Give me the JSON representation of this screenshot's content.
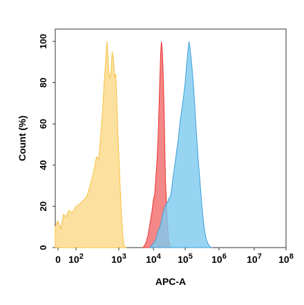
{
  "chart_data": {
    "type": "area",
    "xlabel": "APC-A",
    "ylabel": "Count  (%)",
    "xscale": "biexponential",
    "xlim": [
      -30,
      100000000
    ],
    "ylim": [
      0,
      106
    ],
    "x_ticks": [
      {
        "value": 0,
        "base": "0",
        "exp": ""
      },
      {
        "value": 100,
        "base": "10",
        "exp": "2"
      },
      {
        "value": 1000,
        "base": "10",
        "exp": "3"
      },
      {
        "value": 10000,
        "base": "10",
        "exp": "4"
      },
      {
        "value": 100000,
        "base": "10",
        "exp": "5"
      },
      {
        "value": 1000000,
        "base": "10",
        "exp": "6"
      },
      {
        "value": 10000000,
        "base": "10",
        "exp": "7"
      },
      {
        "value": 100000000,
        "base": "10",
        "exp": "8"
      }
    ],
    "y_ticks": [
      0,
      20,
      40,
      60,
      80,
      100
    ],
    "grid": false,
    "series": [
      {
        "color": "#f5c242",
        "fill": "#fbd98a",
        "points": [
          [
            -30,
            10
          ],
          [
            -15,
            12
          ],
          [
            0,
            13
          ],
          [
            15,
            9
          ],
          [
            30,
            16
          ],
          [
            45,
            15
          ],
          [
            60,
            18
          ],
          [
            80,
            17
          ],
          [
            100,
            20
          ],
          [
            120,
            21
          ],
          [
            150,
            23
          ],
          [
            180,
            25
          ],
          [
            220,
            31
          ],
          [
            260,
            37
          ],
          [
            300,
            44
          ],
          [
            340,
            43
          ],
          [
            380,
            55
          ],
          [
            420,
            67
          ],
          [
            460,
            82
          ],
          [
            500,
            92
          ],
          [
            530,
            100
          ],
          [
            560,
            92
          ],
          [
            600,
            82
          ],
          [
            650,
            84
          ],
          [
            700,
            95
          ],
          [
            750,
            91
          ],
          [
            800,
            83
          ],
          [
            850,
            84
          ],
          [
            900,
            70
          ],
          [
            950,
            56
          ],
          [
            1000,
            45
          ],
          [
            1100,
            28
          ],
          [
            1200,
            15
          ],
          [
            1300,
            6
          ],
          [
            1400,
            1
          ],
          [
            1600,
            0
          ]
        ]
      },
      {
        "color": "#e8322f",
        "fill": "#f26d6d",
        "points": [
          [
            5000,
            0
          ],
          [
            6000,
            2
          ],
          [
            7000,
            6
          ],
          [
            8000,
            12
          ],
          [
            9000,
            17
          ],
          [
            10000,
            23
          ],
          [
            11000,
            26
          ],
          [
            12000,
            34
          ],
          [
            13000,
            42
          ],
          [
            14000,
            52
          ],
          [
            15000,
            68
          ],
          [
            16000,
            82
          ],
          [
            17000,
            95
          ],
          [
            18000,
            100
          ],
          [
            19000,
            96
          ],
          [
            20000,
            88
          ],
          [
            21000,
            77
          ],
          [
            22000,
            62
          ],
          [
            23000,
            47
          ],
          [
            24000,
            33
          ],
          [
            26000,
            21
          ],
          [
            28000,
            10
          ],
          [
            30000,
            4
          ],
          [
            33000,
            1
          ],
          [
            36000,
            0
          ]
        ]
      },
      {
        "color": "#3a9fd8",
        "fill": "#7fcbef",
        "points": [
          [
            8000,
            0
          ],
          [
            10000,
            2
          ],
          [
            12000,
            4
          ],
          [
            14000,
            8
          ],
          [
            16000,
            10
          ],
          [
            18000,
            13
          ],
          [
            20000,
            17
          ],
          [
            22000,
            19
          ],
          [
            25000,
            21
          ],
          [
            28000,
            22
          ],
          [
            31000,
            24
          ],
          [
            35000,
            25
          ],
          [
            40000,
            32
          ],
          [
            45000,
            38
          ],
          [
            50000,
            43
          ],
          [
            55000,
            48
          ],
          [
            60000,
            52
          ],
          [
            66000,
            58
          ],
          [
            72000,
            63
          ],
          [
            80000,
            68
          ],
          [
            90000,
            74
          ],
          [
            100000,
            80
          ],
          [
            110000,
            88
          ],
          [
            120000,
            95
          ],
          [
            130000,
            100
          ],
          [
            140000,
            96
          ],
          [
            150000,
            92
          ],
          [
            170000,
            82
          ],
          [
            190000,
            70
          ],
          [
            210000,
            58
          ],
          [
            240000,
            44
          ],
          [
            280000,
            30
          ],
          [
            320000,
            18
          ],
          [
            370000,
            9
          ],
          [
            420000,
            4
          ],
          [
            500000,
            1
          ],
          [
            600000,
            0
          ]
        ]
      }
    ]
  }
}
